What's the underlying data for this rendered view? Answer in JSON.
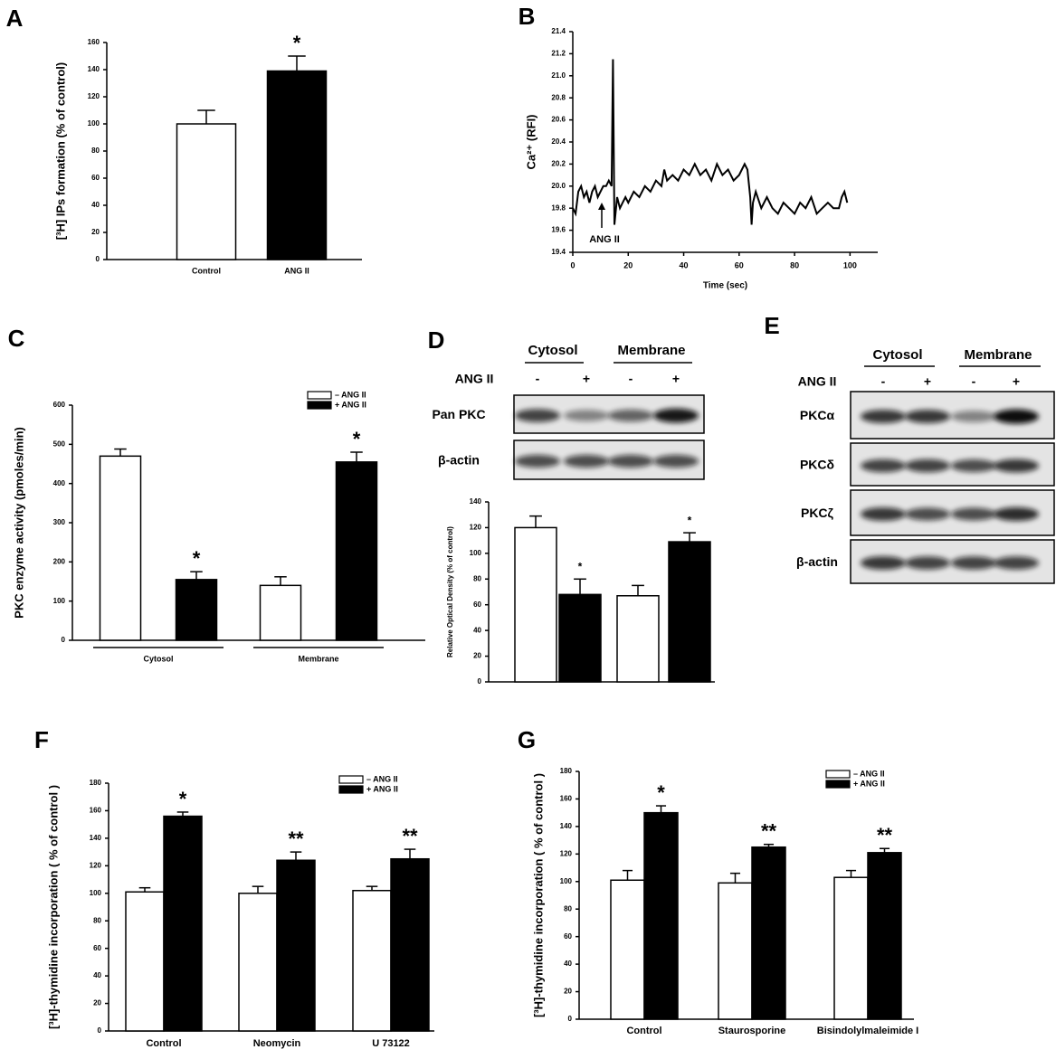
{
  "chart_data": [
    {
      "type": "bar",
      "panel": "A",
      "ylabel": "[³H] IPs formation (% of control)",
      "categories": [
        "Control",
        "ANG II"
      ],
      "values": [
        100,
        139
      ],
      "errors": [
        10,
        11
      ],
      "colors": [
        "#ffffff",
        "#000000"
      ],
      "significance": [
        null,
        "*"
      ],
      "ylim": [
        0,
        160
      ],
      "yticks": [
        0,
        20,
        40,
        60,
        80,
        100,
        120,
        140,
        160
      ]
    },
    {
      "type": "line",
      "panel": "B",
      "ylabel": "Ca²⁺ (RFI)",
      "xlabel": "Time (sec)",
      "annotation": "ANG II",
      "color": "#000000",
      "x": [
        0,
        1,
        2,
        3,
        4,
        5,
        6,
        7,
        8,
        9,
        10,
        11,
        12,
        13,
        14,
        14.5,
        15,
        16,
        17,
        18,
        19,
        20,
        22,
        24,
        26,
        28,
        30,
        32,
        33,
        34,
        36,
        38,
        40,
        42,
        44,
        46,
        48,
        50,
        52,
        54,
        56,
        58,
        60,
        62,
        63,
        64,
        64.5,
        65,
        66,
        68,
        70,
        72,
        74,
        76,
        78,
        80,
        82,
        84,
        86,
        88,
        90,
        92,
        94,
        96,
        97,
        98,
        99
      ],
      "y": [
        19.8,
        19.75,
        19.95,
        20.0,
        19.9,
        19.95,
        19.85,
        19.95,
        20.0,
        19.9,
        19.95,
        20.0,
        20.0,
        20.05,
        20.0,
        21.15,
        19.65,
        19.9,
        19.8,
        19.85,
        19.9,
        19.85,
        19.95,
        19.9,
        20.0,
        19.95,
        20.05,
        20.0,
        20.15,
        20.05,
        20.1,
        20.05,
        20.15,
        20.1,
        20.2,
        20.1,
        20.15,
        20.05,
        20.2,
        20.1,
        20.15,
        20.05,
        20.1,
        20.2,
        20.15,
        19.9,
        19.65,
        19.85,
        19.95,
        19.8,
        19.9,
        19.8,
        19.75,
        19.85,
        19.8,
        19.75,
        19.85,
        19.8,
        19.9,
        19.75,
        19.8,
        19.85,
        19.8,
        19.8,
        19.9,
        19.95,
        19.85
      ],
      "xlim": [
        0,
        110
      ],
      "xticks": [
        0,
        20,
        40,
        60,
        80,
        100
      ],
      "ylim": [
        19.4,
        21.4
      ],
      "yticks": [
        19.4,
        19.6,
        19.8,
        {
          "value": 20,
          "label": "20.0"
        },
        20.2,
        20.4,
        20.6,
        20.8,
        {
          "value": 21,
          "label": "21.0"
        },
        21.2,
        21.4
      ]
    },
    {
      "type": "grouped_bar",
      "panel": "C",
      "ylabel": "PKC enzyme activity (pmoles/min)",
      "categories": [
        "Cytosol",
        "Membrane"
      ],
      "series": [
        {
          "name": "– ANG II",
          "color": "#ffffff",
          "values": [
            470,
            140
          ],
          "errors": [
            18,
            22
          ]
        },
        {
          "name": "+ ANG II",
          "color": "#000000",
          "values": [
            155,
            455
          ],
          "errors": [
            20,
            25
          ],
          "significance": [
            "*",
            "*"
          ]
        }
      ],
      "ylim": [
        0,
        600
      ],
      "yticks": [
        0,
        100,
        200,
        300,
        400,
        500,
        600
      ]
    },
    {
      "type": "bar",
      "panel": "D",
      "ylabel": "Relative Optical Density (% of control)",
      "values": [
        120,
        68,
        67,
        109
      ],
      "errors": [
        9,
        12,
        8,
        7
      ],
      "colors": [
        "#ffffff",
        "#000000",
        "#ffffff",
        "#000000"
      ],
      "significance": [
        null,
        "*",
        null,
        "*"
      ],
      "ylim": [
        0,
        140
      ],
      "yticks": [
        0,
        20,
        40,
        60,
        80,
        100,
        120,
        140
      ]
    },
    {
      "type": "grouped_bar",
      "panel": "F",
      "ylabel": "[³H]-thymidine incorporation ( % of control )",
      "categories": [
        "Control",
        "Neomycin",
        "U 73122"
      ],
      "series": [
        {
          "name": "– ANG II",
          "color": "#ffffff",
          "values": [
            101,
            100,
            102
          ],
          "errors": [
            3,
            5,
            3
          ]
        },
        {
          "name": "+ ANG II",
          "color": "#000000",
          "values": [
            156,
            124,
            125
          ],
          "errors": [
            3,
            6,
            7
          ],
          "significance": [
            "*",
            "**",
            "**"
          ]
        }
      ],
      "ylim": [
        0,
        180
      ],
      "yticks": [
        0,
        20,
        40,
        60,
        80,
        100,
        120,
        140,
        160,
        180
      ]
    },
    {
      "type": "grouped_bar",
      "panel": "G",
      "ylabel": "[³H]-thymidine incorporation ( % of control )",
      "categories": [
        "Control",
        "Staurosporine",
        "Bisindolylmaleimide I"
      ],
      "series": [
        {
          "name": "– ANG II",
          "color": "#ffffff",
          "values": [
            101,
            99,
            103
          ],
          "errors": [
            7,
            7,
            5
          ]
        },
        {
          "name": "+ ANG II",
          "color": "#000000",
          "values": [
            150,
            125,
            121
          ],
          "errors": [
            5,
            2,
            3
          ],
          "significance": [
            "*",
            "**",
            "**"
          ]
        }
      ],
      "ylim": [
        0,
        180
      ],
      "yticks": [
        0,
        20,
        40,
        60,
        80,
        100,
        120,
        140,
        160,
        180
      ]
    }
  ],
  "blots": [
    {
      "groups": [
        "Cytosol",
        "Membrane"
      ],
      "treatment": "ANG II",
      "lanes": [
        "-",
        "+",
        "-",
        "+"
      ],
      "rows": [
        "Pan PKC",
        "β-actin"
      ]
    },
    {
      "panel": "E",
      "groups": [
        "Cytosol",
        "Membrane"
      ],
      "treatment": "ANG II",
      "lanes": [
        "-",
        "+",
        "-",
        "+"
      ],
      "rows": [
        "PKCα",
        "PKCδ",
        "PKCζ",
        "β-actin"
      ]
    }
  ]
}
